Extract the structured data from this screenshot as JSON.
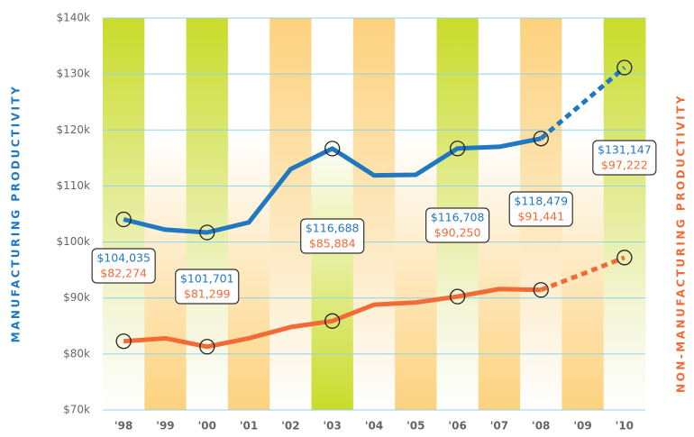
{
  "chart_data": {
    "type": "line",
    "ylabel": "MANUFACTURING PRODUCTIVITY",
    "ylabel_right": "NON-MANUFACTURING PRODUCTIVITY",
    "categories": [
      "'98",
      "'99",
      "'00",
      "'01",
      "'02",
      "'03",
      "'04",
      "'05",
      "'06",
      "'07",
      "'08",
      "'09",
      "'10"
    ],
    "ylim": [
      70000,
      140000
    ],
    "yticks": [
      {
        "value": 70000,
        "label": "$70k"
      },
      {
        "value": 80000,
        "label": "$80k"
      },
      {
        "value": 90000,
        "label": "$90k"
      },
      {
        "value": 100000,
        "label": "$100k"
      },
      {
        "value": 110000,
        "label": "$110k"
      },
      {
        "value": 120000,
        "label": "$120k"
      },
      {
        "value": 130000,
        "label": "$130k"
      },
      {
        "value": 140000,
        "label": "$140k"
      }
    ],
    "grid": true,
    "dashed_after": "'08",
    "series": [
      {
        "color": "#1f78c1",
        "values": [
          104035,
          102200,
          101701,
          103500,
          113000,
          116688,
          111900,
          112000,
          116708,
          117000,
          118479,
          124800,
          131147
        ],
        "value_labels": [
          "$104,035",
          null,
          "$101,701",
          null,
          null,
          "$116,688",
          null,
          null,
          "$116,708",
          null,
          "$118,479",
          null,
          "$131,147"
        ]
      },
      {
        "color": "#f26b36",
        "values": [
          82274,
          82800,
          81299,
          82800,
          84800,
          85884,
          88800,
          89200,
          90250,
          91600,
          91441,
          94300,
          97222
        ],
        "value_labels": [
          "$82,274",
          null,
          "$81,299",
          null,
          null,
          "$85,884",
          null,
          null,
          "$90,250",
          null,
          "$91,441",
          null,
          "$97,222"
        ]
      }
    ]
  }
}
